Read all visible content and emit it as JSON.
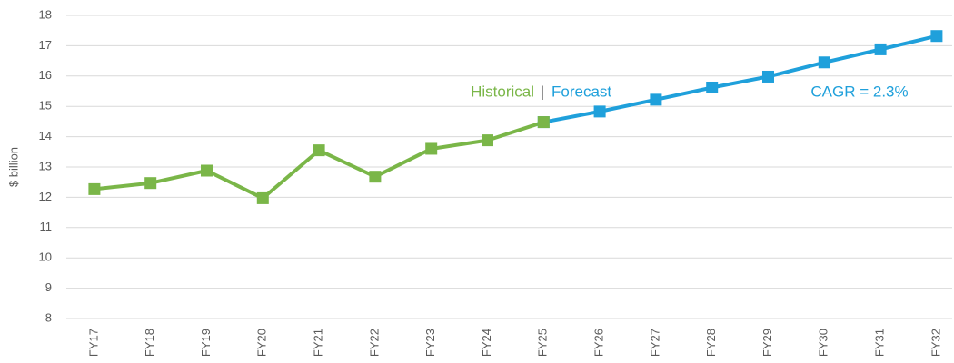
{
  "chart_data": {
    "type": "line",
    "y_label": "$ billion",
    "categories": [
      "FY17",
      "FY18",
      "FY19",
      "FY20",
      "FY21",
      "FY22",
      "FY23",
      "FY24",
      "FY25",
      "FY26",
      "FY27",
      "FY28",
      "FY29",
      "FY30",
      "FY31",
      "FY32"
    ],
    "series": [
      {
        "name": "Historical",
        "color": "#7ab648",
        "values": [
          12.27,
          12.47,
          12.88,
          11.97,
          13.55,
          12.68,
          13.6,
          13.88,
          14.48,
          null,
          null,
          null,
          null,
          null,
          null,
          null
        ]
      },
      {
        "name": "Forecast",
        "color": "#1fa0db",
        "values": [
          null,
          null,
          null,
          null,
          null,
          null,
          null,
          null,
          14.48,
          14.83,
          15.22,
          15.62,
          15.98,
          16.45,
          16.88,
          17.32
        ]
      }
    ],
    "annotations": [
      "Historical",
      "|",
      "Forecast",
      "CAGR = 2.3%"
    ],
    "ylim": [
      8,
      18
    ],
    "yticks": [
      8,
      9,
      10,
      11,
      12,
      13,
      14,
      15,
      16,
      17,
      18
    ],
    "grid": true
  }
}
